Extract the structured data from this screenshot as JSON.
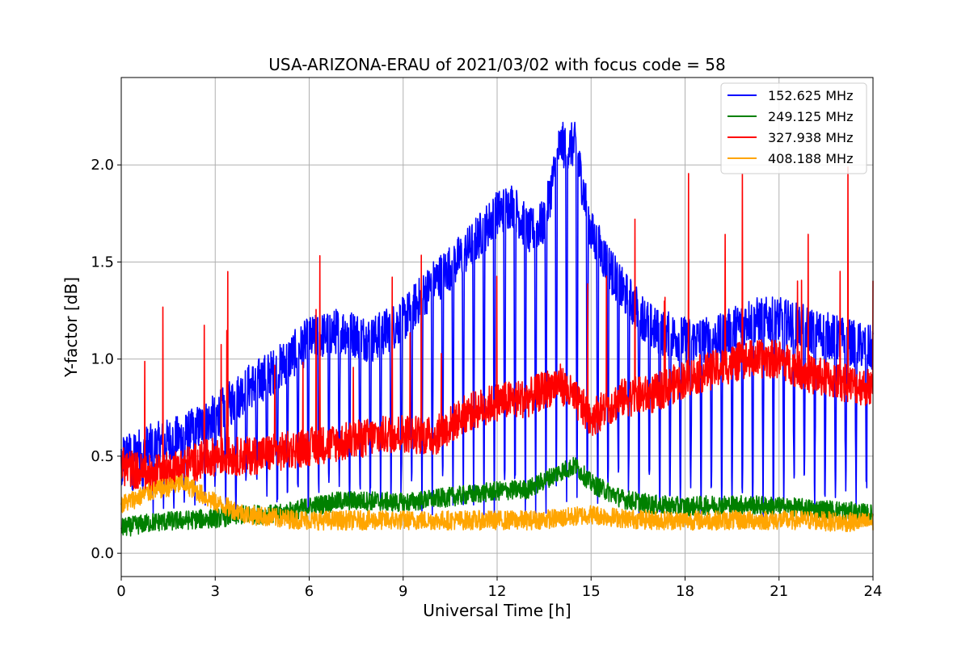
{
  "chart_data": {
    "type": "line",
    "title": "USA-ARIZONA-ERAU of 2021/03/02 with focus code = 58",
    "xlabel": "Universal Time [h]",
    "ylabel": "Y-factor [dB]",
    "xlim": [
      0,
      24
    ],
    "ylim": [
      -0.12,
      2.45
    ],
    "xticks": [
      0,
      3,
      6,
      9,
      12,
      15,
      18,
      21,
      24
    ],
    "xtick_labels": [
      "0",
      "3",
      "6",
      "9",
      "12",
      "15",
      "18",
      "21",
      "24"
    ],
    "yticks": [
      0.0,
      0.5,
      1.0,
      1.5,
      2.0
    ],
    "ytick_labels": [
      "0.0",
      "0.5",
      "1.0",
      "1.5",
      "2.0"
    ],
    "grid": true,
    "legend_position": "top-right",
    "series": [
      {
        "name": "152.625 MHz",
        "color": "#0000ff",
        "x": [
          0,
          1,
          2,
          3,
          4,
          5,
          6,
          7,
          8,
          9,
          10,
          11,
          12,
          12.5,
          13,
          13.5,
          14,
          14.5,
          15,
          16,
          17,
          18,
          19,
          20,
          21,
          22,
          23,
          24
        ],
        "y": [
          0.5,
          0.55,
          0.6,
          0.7,
          0.85,
          0.95,
          1.1,
          1.15,
          1.1,
          1.2,
          1.4,
          1.55,
          1.75,
          1.8,
          1.65,
          1.7,
          2.1,
          2.1,
          1.65,
          1.35,
          1.15,
          1.1,
          1.1,
          1.2,
          1.2,
          1.15,
          1.1,
          1.05
        ]
      },
      {
        "name": "249.125 MHz",
        "color": "#008000",
        "x": [
          0,
          1,
          2,
          3,
          4,
          5,
          6,
          7,
          8,
          9,
          10,
          11,
          12,
          13,
          14,
          14.5,
          15,
          16,
          17,
          18,
          19,
          20,
          21,
          22,
          23,
          24
        ],
        "y": [
          0.13,
          0.16,
          0.17,
          0.18,
          0.2,
          0.2,
          0.24,
          0.27,
          0.27,
          0.26,
          0.28,
          0.3,
          0.32,
          0.33,
          0.42,
          0.45,
          0.36,
          0.28,
          0.25,
          0.24,
          0.25,
          0.25,
          0.24,
          0.23,
          0.22,
          0.2
        ]
      },
      {
        "name": "327.938 MHz",
        "color": "#ff0000",
        "x": [
          0,
          1,
          2,
          3,
          4,
          5,
          6,
          7,
          8,
          9,
          10,
          11,
          12,
          13,
          14,
          15,
          16,
          17,
          18,
          19,
          20,
          21,
          22,
          23,
          24
        ],
        "y": [
          0.45,
          0.4,
          0.45,
          0.5,
          0.5,
          0.52,
          0.55,
          0.57,
          0.6,
          0.62,
          0.6,
          0.72,
          0.78,
          0.8,
          0.88,
          0.7,
          0.8,
          0.82,
          0.9,
          0.95,
          1.0,
          1.0,
          0.92,
          0.88,
          0.85
        ]
      },
      {
        "name": "408.188 MHz",
        "color": "#ffa500",
        "x": [
          0,
          1,
          2,
          3,
          4,
          5,
          6,
          7,
          8,
          9,
          10,
          11,
          12,
          13,
          14,
          15,
          16,
          17,
          18,
          19,
          20,
          21,
          22,
          23,
          24
        ],
        "y": [
          0.25,
          0.32,
          0.36,
          0.26,
          0.2,
          0.18,
          0.17,
          0.17,
          0.17,
          0.17,
          0.17,
          0.17,
          0.17,
          0.17,
          0.18,
          0.2,
          0.18,
          0.17,
          0.17,
          0.17,
          0.17,
          0.17,
          0.17,
          0.16,
          0.16
        ]
      }
    ]
  }
}
